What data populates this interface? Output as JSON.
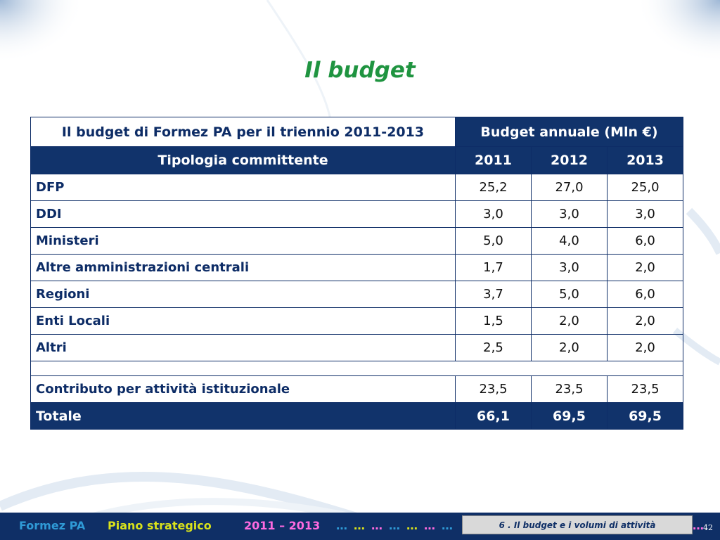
{
  "slide": {
    "title": "Il budget"
  },
  "table": {
    "header_left": "Il budget di Formez PA per il triennio 2011-2013",
    "header_right": "Budget annuale (Mln €)",
    "sub_header_left": "Tipologia committente",
    "years": [
      "2011",
      "2012",
      "2013"
    ],
    "rows": [
      {
        "label": "DFP",
        "values": [
          "25,2",
          "27,0",
          "25,0"
        ]
      },
      {
        "label": "DDI",
        "values": [
          "3,0",
          "3,0",
          "3,0"
        ]
      },
      {
        "label": "Ministeri",
        "values": [
          "5,0",
          "4,0",
          "6,0"
        ]
      },
      {
        "label": "Altre amministrazioni centrali",
        "values": [
          "1,7",
          "3,0",
          "2,0"
        ]
      },
      {
        "label": "Regioni",
        "values": [
          "3,7",
          "5,0",
          "6,0"
        ]
      },
      {
        "label": "Enti Locali",
        "values": [
          "1,5",
          "2,0",
          "2,0"
        ]
      },
      {
        "label": "Altri",
        "values": [
          "2,5",
          "2,0",
          "2,0"
        ]
      }
    ],
    "contributo": {
      "label": "Contributo per attività istituzionale",
      "values": [
        "23,5",
        "23,5",
        "23,5"
      ]
    },
    "totale": {
      "label": "Totale",
      "values": [
        "66,1",
        "69,5",
        "69,5"
      ]
    }
  },
  "footer": {
    "org": "Formez PA",
    "plan": "Piano strategico",
    "years": "2011  –  2013",
    "dots": "…",
    "section": "6 . Il budget e i volumi di attività",
    "page_number": "42"
  },
  "colors": {
    "title_green": "#1f9440",
    "navy": "#11336b",
    "label_blue": "#0d2c66"
  }
}
